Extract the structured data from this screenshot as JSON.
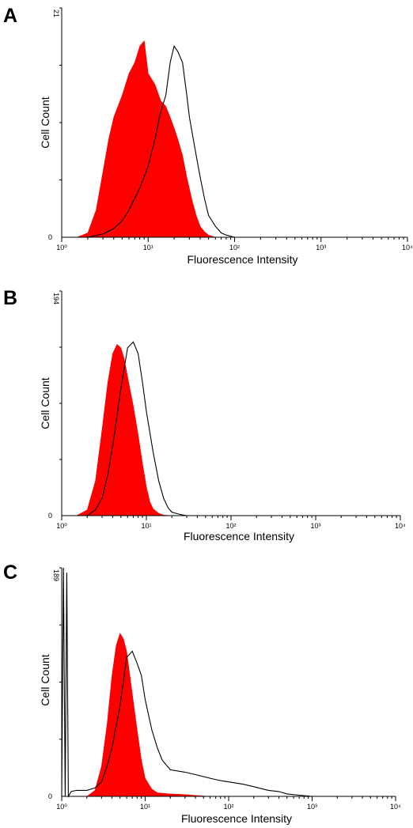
{
  "chart_data": [
    {
      "panel": "A",
      "type": "area",
      "xlabel": "Fluorescence Intensity",
      "ylabel": "Cell Count",
      "xscale": "log",
      "xlim": [
        1,
        10000
      ],
      "ylim": [
        0,
        21
      ],
      "xtick_labels": [
        "10⁰",
        "10¹",
        "10²",
        "10³",
        "10⁴"
      ],
      "ytick_labels": [
        "0",
        "21"
      ],
      "series": [
        {
          "style": "filled",
          "color": "#ff0000",
          "x": [
            1.5,
            2.0,
            2.5,
            3.0,
            3.5,
            4.0,
            5.0,
            6.0,
            7.0,
            8.0,
            9.0,
            10,
            12,
            14,
            16,
            18,
            20,
            22,
            25,
            28,
            32,
            36,
            40,
            45,
            50,
            60
          ],
          "y": [
            0,
            0.4,
            2.5,
            6,
            9,
            11,
            13,
            15,
            16,
            17.5,
            18,
            15,
            14,
            12.5,
            12,
            11,
            10,
            9,
            7.5,
            5.5,
            3.5,
            2,
            1,
            0.5,
            0.2,
            0
          ]
        },
        {
          "style": "outline",
          "color": "#000000",
          "x": [
            2,
            3,
            4,
            5,
            6,
            8,
            10,
            12,
            14,
            16,
            18,
            20,
            22,
            25,
            28,
            30,
            35,
            40,
            45,
            50,
            60,
            70,
            80,
            100
          ],
          "y": [
            0,
            0.3,
            0.8,
            1.5,
            2.5,
            4.5,
            6.5,
            9,
            11.5,
            13,
            16,
            17.5,
            17,
            16,
            13,
            11,
            8,
            5.5,
            3.5,
            2,
            1,
            0.4,
            0.2,
            0
          ]
        }
      ]
    },
    {
      "panel": "B",
      "type": "area",
      "xlabel": "Fluorescence Intensity",
      "ylabel": "Cell Count",
      "xscale": "log",
      "xlim": [
        1,
        10000
      ],
      "ylim": [
        0,
        194
      ],
      "xtick_labels": [
        "10⁰",
        "10¹",
        "10²",
        "10³",
        "10⁴"
      ],
      "ytick_labels": [
        "0",
        "194"
      ],
      "series": [
        {
          "style": "filled",
          "color": "#ff0000",
          "x": [
            1.5,
            2,
            2.5,
            3,
            3.5,
            4,
            4.5,
            5,
            5.5,
            6,
            7,
            8,
            9,
            10,
            11,
            12,
            14,
            16,
            20
          ],
          "y": [
            0,
            5,
            30,
            75,
            115,
            140,
            148,
            145,
            135,
            120,
            95,
            70,
            45,
            25,
            12,
            6,
            2,
            0.5,
            0
          ]
        },
        {
          "style": "outline",
          "color": "#000000",
          "x": [
            2,
            2.5,
            3,
            3.5,
            4,
            5,
            6,
            7,
            8,
            9,
            10,
            12,
            14,
            16,
            18,
            20,
            25,
            30
          ],
          "y": [
            0,
            5,
            15,
            35,
            60,
            110,
            145,
            150,
            140,
            115,
            90,
            55,
            30,
            15,
            7,
            3,
            1,
            0
          ]
        }
      ]
    },
    {
      "panel": "C",
      "type": "area",
      "xlabel": "Fluorescence Intensity",
      "ylabel": "Cell Count",
      "xscale": "log",
      "xlim": [
        1,
        10000
      ],
      "ylim": [
        0,
        189
      ],
      "xtick_labels": [
        "10⁰",
        "10¹",
        "10²",
        "10³",
        "10⁴"
      ],
      "ytick_labels": [
        "0",
        "189"
      ],
      "series": [
        {
          "style": "filled",
          "color": "#ff0000",
          "x": [
            2,
            2.5,
            3,
            3.5,
            4,
            4.5,
            5,
            5.5,
            6,
            7,
            8,
            9,
            10,
            12,
            14,
            20,
            30,
            40,
            50,
            60
          ],
          "y": [
            0,
            5,
            25,
            60,
            100,
            125,
            135,
            130,
            120,
            85,
            55,
            30,
            15,
            6,
            3,
            2,
            1.5,
            0.8,
            0.3,
            0
          ]
        },
        {
          "style": "outline",
          "color": "#000000",
          "x": [
            1.0,
            1.05,
            1.1,
            1.15,
            1.2,
            1.3,
            1.5,
            2,
            2.5,
            3,
            3.5,
            4,
            5,
            6,
            7,
            8,
            9,
            10,
            12,
            14,
            16,
            20,
            30,
            40,
            60,
            80,
            100,
            150,
            200,
            300,
            400,
            500,
            700,
            1000
          ],
          "y": [
            0,
            189,
            0,
            185,
            0,
            4,
            5,
            5,
            7,
            12,
            25,
            40,
            75,
            115,
            120,
            110,
            100,
            80,
            55,
            40,
            30,
            22,
            20,
            18,
            15,
            13,
            12,
            10,
            8,
            5,
            4,
            2,
            1,
            0
          ]
        }
      ]
    }
  ]
}
